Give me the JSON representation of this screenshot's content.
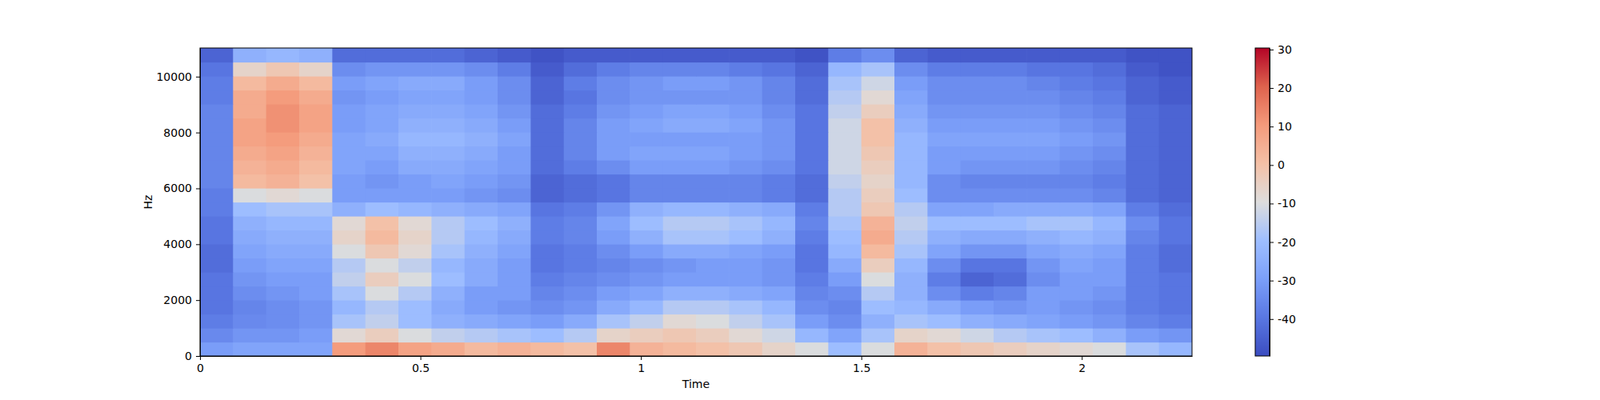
{
  "chart_data": {
    "type": "heatmap",
    "xlabel": "Time",
    "ylabel": "Hz",
    "xlim": [
      0,
      2.25
    ],
    "ylim": [
      0,
      11025
    ],
    "xticks": [
      0,
      0.5,
      1,
      1.5,
      2
    ],
    "yticks": [
      0,
      2000,
      4000,
      6000,
      8000,
      10000
    ],
    "x_edges": [
      0,
      0.075,
      0.15,
      0.225,
      0.3,
      0.375,
      0.45,
      0.525,
      0.6,
      0.675,
      0.75,
      0.825,
      0.9,
      0.975,
      1.05,
      1.125,
      1.2,
      1.275,
      1.35,
      1.425,
      1.5,
      1.575,
      1.65,
      1.725,
      1.8,
      1.875,
      1.95,
      2.025,
      2.1,
      2.175,
      2.25
    ],
    "y_edges": [
      0,
      501.1,
      1002.3,
      1503.4,
      2004.5,
      2505.7,
      3006.8,
      3508.0,
      4009.1,
      4510.2,
      5011.4,
      5512.5,
      6013.6,
      6514.8,
      7015.9,
      7517.0,
      8018.2,
      8519.3,
      9020.5,
      9521.6,
      10022.7,
      10523.9,
      11025
    ],
    "z": [
      [
        -30,
        -28,
        -28,
        -28,
        10,
        14,
        8,
        6,
        2,
        4,
        2,
        0,
        14,
        4,
        2,
        0,
        -2,
        -6,
        -10,
        -20,
        -10,
        4,
        0,
        -2,
        -4,
        -6,
        -8,
        -10,
        -18,
        -22
      ],
      [
        -35,
        -32,
        -32,
        -30,
        -8,
        -4,
        -10,
        -14,
        -16,
        -18,
        -20,
        -16,
        -6,
        -4,
        -2,
        -4,
        -8,
        -12,
        -22,
        -28,
        -18,
        -6,
        -8,
        -12,
        -16,
        -18,
        -20,
        -24,
        -30,
        -32
      ],
      [
        -38,
        -35,
        -34,
        -32,
        -18,
        -14,
        -20,
        -24,
        -26,
        -28,
        -30,
        -26,
        -18,
        -14,
        -8,
        -10,
        -14,
        -18,
        -30,
        -34,
        -24,
        -18,
        -20,
        -24,
        -26,
        -28,
        -30,
        -32,
        -36,
        -38
      ],
      [
        -40,
        -36,
        -34,
        -32,
        -22,
        -16,
        -20,
        -26,
        -30,
        -32,
        -34,
        -32,
        -26,
        -22,
        -16,
        -16,
        -18,
        -22,
        -34,
        -36,
        -20,
        -22,
        -26,
        -30,
        -32,
        -30,
        -32,
        -34,
        -38,
        -40
      ],
      [
        -40,
        -34,
        -32,
        -30,
        -18,
        -10,
        -16,
        -24,
        -30,
        -30,
        -36,
        -34,
        -30,
        -28,
        -24,
        -24,
        -26,
        -28,
        -36,
        -34,
        -16,
        -24,
        -34,
        -38,
        -36,
        -30,
        -30,
        -32,
        -38,
        -40
      ],
      [
        -40,
        -32,
        -30,
        -30,
        -14,
        -4,
        -10,
        -20,
        -26,
        -30,
        -38,
        -36,
        -34,
        -32,
        -30,
        -30,
        -30,
        -32,
        -38,
        -30,
        -10,
        -24,
        -38,
        -44,
        -42,
        -34,
        -30,
        -30,
        -38,
        -40
      ],
      [
        -42,
        -30,
        -28,
        -28,
        -16,
        -10,
        -14,
        -22,
        -26,
        -30,
        -40,
        -38,
        -36,
        -34,
        -32,
        -30,
        -30,
        -32,
        -40,
        -26,
        -4,
        -22,
        -34,
        -40,
        -40,
        -32,
        -28,
        -30,
        -38,
        -42
      ],
      [
        -42,
        -28,
        -26,
        -26,
        -10,
        -2,
        -8,
        -18,
        -24,
        -28,
        -40,
        -38,
        -34,
        -30,
        -26,
        -26,
        -28,
        -30,
        -40,
        -22,
        2,
        -18,
        -28,
        -32,
        -32,
        -28,
        -26,
        -28,
        -38,
        -42
      ],
      [
        -40,
        -26,
        -24,
        -24,
        -6,
        2,
        -6,
        -16,
        -22,
        -26,
        -38,
        -36,
        -30,
        -24,
        -18,
        -18,
        -20,
        -24,
        -38,
        -20,
        6,
        -16,
        -24,
        -26,
        -26,
        -24,
        -22,
        -24,
        -36,
        -40
      ],
      [
        -40,
        -24,
        -22,
        -22,
        -8,
        0,
        -8,
        -16,
        -20,
        -24,
        -38,
        -36,
        -28,
        -20,
        -16,
        -16,
        -18,
        -22,
        -36,
        -18,
        4,
        -14,
        -20,
        -20,
        -20,
        -18,
        -18,
        -22,
        -34,
        -40
      ],
      [
        -38,
        -20,
        -18,
        -18,
        -24,
        -20,
        -22,
        -24,
        -26,
        -28,
        -40,
        -38,
        -32,
        -24,
        -22,
        -22,
        -24,
        -26,
        -38,
        -16,
        -2,
        -16,
        -28,
        -28,
        -26,
        -26,
        -26,
        -28,
        -38,
        -42
      ],
      [
        -38,
        -10,
        -8,
        -10,
        -30,
        -30,
        -30,
        -30,
        -32,
        -34,
        -44,
        -42,
        -40,
        -36,
        -36,
        -36,
        -36,
        -38,
        -42,
        -16,
        -4,
        -20,
        -34,
        -34,
        -34,
        -34,
        -34,
        -36,
        -42,
        -44
      ],
      [
        -36,
        2,
        4,
        0,
        -30,
        -32,
        -30,
        -28,
        -30,
        -32,
        -44,
        -42,
        -40,
        -36,
        -36,
        -36,
        -36,
        -38,
        -42,
        -14,
        -6,
        -22,
        -34,
        -36,
        -36,
        -36,
        -36,
        -38,
        -42,
        -44
      ],
      [
        -36,
        4,
        6,
        2,
        -28,
        -30,
        -26,
        -26,
        -28,
        -30,
        -42,
        -38,
        -34,
        -30,
        -30,
        -30,
        -32,
        -34,
        -40,
        -12,
        -4,
        -22,
        -30,
        -32,
        -32,
        -32,
        -34,
        -36,
        -42,
        -44
      ],
      [
        -36,
        6,
        8,
        4,
        -28,
        -28,
        -24,
        -24,
        -26,
        -30,
        -42,
        -36,
        -30,
        -28,
        -28,
        -28,
        -30,
        -32,
        -40,
        -12,
        -2,
        -22,
        -30,
        -30,
        -30,
        -30,
        -32,
        -34,
        -42,
        -44
      ],
      [
        -36,
        8,
        10,
        6,
        -28,
        -26,
        -22,
        -22,
        -24,
        -28,
        -42,
        -36,
        -30,
        -30,
        -30,
        -30,
        -30,
        -32,
        -40,
        -12,
        0,
        -22,
        -28,
        -28,
        -28,
        -28,
        -30,
        -32,
        -42,
        -44
      ],
      [
        -36,
        8,
        12,
        8,
        -30,
        -28,
        -24,
        -24,
        -26,
        -30,
        -42,
        -36,
        -30,
        -28,
        -26,
        -26,
        -28,
        -32,
        -40,
        -12,
        0,
        -24,
        -30,
        -30,
        -30,
        -30,
        -32,
        -34,
        -42,
        -44
      ],
      [
        -36,
        6,
        12,
        8,
        -30,
        -28,
        -26,
        -26,
        -28,
        -32,
        -42,
        -38,
        -32,
        -30,
        -28,
        -28,
        -30,
        -34,
        -40,
        -14,
        -4,
        -26,
        -32,
        -32,
        -32,
        -32,
        -34,
        -36,
        -42,
        -44
      ],
      [
        -38,
        6,
        10,
        6,
        -32,
        -30,
        -28,
        -28,
        -30,
        -34,
        -44,
        -40,
        -34,
        -32,
        -32,
        -32,
        -32,
        -36,
        -42,
        -16,
        -8,
        -28,
        -34,
        -34,
        -34,
        -34,
        -36,
        -38,
        -44,
        -46
      ],
      [
        -38,
        2,
        6,
        2,
        -30,
        -28,
        -26,
        -26,
        -30,
        -34,
        -44,
        -38,
        -34,
        -32,
        -30,
        -30,
        -32,
        -36,
        -42,
        -18,
        -12,
        -30,
        -34,
        -34,
        -34,
        -36,
        -38,
        -40,
        -44,
        -46
      ],
      [
        -40,
        -6,
        -2,
        -6,
        -34,
        -32,
        -32,
        -32,
        -34,
        -38,
        -46,
        -42,
        -38,
        -36,
        -36,
        -36,
        -38,
        -40,
        -44,
        -22,
        -18,
        -34,
        -38,
        -38,
        -38,
        -40,
        -40,
        -42,
        -46,
        -48
      ],
      [
        -44,
        -24,
        -22,
        -24,
        -42,
        -42,
        -42,
        -42,
        -44,
        -46,
        -48,
        -46,
        -46,
        -46,
        -46,
        -46,
        -46,
        -46,
        -48,
        -38,
        -34,
        -44,
        -46,
        -46,
        -46,
        -46,
        -46,
        -46,
        -48,
        -48
      ]
    ],
    "colorbar_lim": [
      -49.6,
      30.4
    ],
    "colorbar_ticks": [
      -40,
      -30,
      -20,
      -10,
      0,
      10,
      20,
      30
    ]
  }
}
